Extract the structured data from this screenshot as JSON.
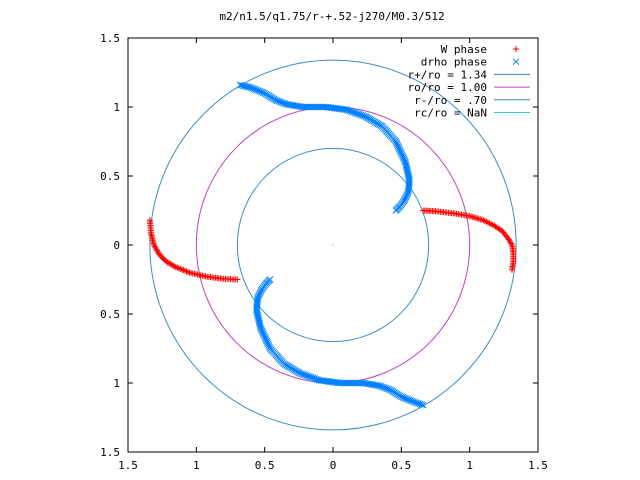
{
  "chart_data": {
    "type": "scatter",
    "title": "m2/n1.5/q1.75/r-+.52-j270/M0.3/512",
    "xlim": [
      -1.5,
      1.5
    ],
    "ylim": [
      -1.5,
      1.5
    ],
    "x_ticks": [
      {
        "value": -1.5,
        "label": "1.5"
      },
      {
        "value": -1.0,
        "label": "1"
      },
      {
        "value": -0.5,
        "label": "0.5"
      },
      {
        "value": 0.0,
        "label": "0"
      },
      {
        "value": 0.5,
        "label": "0.5"
      },
      {
        "value": 1.0,
        "label": "1"
      },
      {
        "value": 1.5,
        "label": "1.5"
      }
    ],
    "y_ticks": [
      {
        "value": 1.5,
        "label": "1.5"
      },
      {
        "value": 1.0,
        "label": "1"
      },
      {
        "value": 0.5,
        "label": "0.5"
      },
      {
        "value": 0.0,
        "label": "0"
      },
      {
        "value": -0.5,
        "label": "0.5"
      },
      {
        "value": -1.0,
        "label": "1"
      },
      {
        "value": -1.5,
        "label": "1.5"
      }
    ],
    "grid": false,
    "legend_position": "top-right",
    "series": [
      {
        "name": "W phase",
        "marker": "plus",
        "color": "#ff0000",
        "arms": [
          {
            "points": [
              [
                -1.34,
                0.18
              ],
              [
                -1.33,
                0.08
              ],
              [
                -1.31,
                0.0
              ],
              [
                -1.27,
                -0.07
              ],
              [
                -1.22,
                -0.12
              ],
              [
                -1.15,
                -0.16
              ],
              [
                -1.05,
                -0.2
              ],
              [
                -0.92,
                -0.23
              ],
              [
                -0.8,
                -0.245
              ],
              [
                -0.7,
                -0.25
              ]
            ]
          },
          {
            "points": [
              [
                0.66,
                0.25
              ],
              [
                0.75,
                0.245
              ],
              [
                0.88,
                0.23
              ],
              [
                1.0,
                0.21
              ],
              [
                1.1,
                0.18
              ],
              [
                1.18,
                0.14
              ],
              [
                1.24,
                0.1
              ],
              [
                1.28,
                0.05
              ],
              [
                1.31,
                0.0
              ],
              [
                1.32,
                -0.06
              ],
              [
                1.32,
                -0.12
              ],
              [
                1.31,
                -0.18
              ]
            ]
          }
        ]
      },
      {
        "name": "drho phase",
        "marker": "cross",
        "color": "#0080ff",
        "arms": [
          {
            "points": [
              [
                -0.68,
                1.16
              ],
              [
                -0.6,
                1.14
              ],
              [
                -0.5,
                1.1
              ],
              [
                -0.42,
                1.05
              ],
              [
                -0.34,
                1.02
              ],
              [
                -0.22,
                1.0
              ],
              [
                -0.05,
                1.0
              ],
              [
                0.1,
                0.98
              ],
              [
                0.24,
                0.93
              ],
              [
                0.36,
                0.86
              ],
              [
                0.46,
                0.75
              ],
              [
                0.53,
                0.6
              ],
              [
                0.56,
                0.47
              ],
              [
                0.55,
                0.38
              ],
              [
                0.52,
                0.32
              ],
              [
                0.49,
                0.28
              ],
              [
                0.46,
                0.25
              ]
            ]
          },
          {
            "points": [
              [
                -0.46,
                -0.25
              ],
              [
                -0.49,
                -0.28
              ],
              [
                -0.52,
                -0.32
              ],
              [
                -0.55,
                -0.38
              ],
              [
                -0.56,
                -0.47
              ],
              [
                -0.53,
                -0.6
              ],
              [
                -0.46,
                -0.75
              ],
              [
                -0.36,
                -0.86
              ],
              [
                -0.24,
                -0.93
              ],
              [
                -0.1,
                -0.98
              ],
              [
                0.05,
                -1.0
              ],
              [
                0.22,
                -1.0
              ],
              [
                0.34,
                -1.02
              ],
              [
                0.42,
                -1.05
              ],
              [
                0.5,
                -1.1
              ],
              [
                0.6,
                -1.14
              ],
              [
                0.66,
                -1.16
              ]
            ]
          }
        ]
      }
    ],
    "circles": [
      {
        "name": "r+/ro = 1.34",
        "radius": 1.34,
        "color": "#3a8ec9"
      },
      {
        "name": "ro/ro = 1.00",
        "radius": 1.0,
        "color": "#c040c0"
      },
      {
        "name": "r-/ro = .70",
        "radius": 0.7,
        "color": "#3a8ec9"
      },
      {
        "name": "rc/ro = NaN",
        "radius": null,
        "color": "#40c8e0"
      }
    ]
  }
}
